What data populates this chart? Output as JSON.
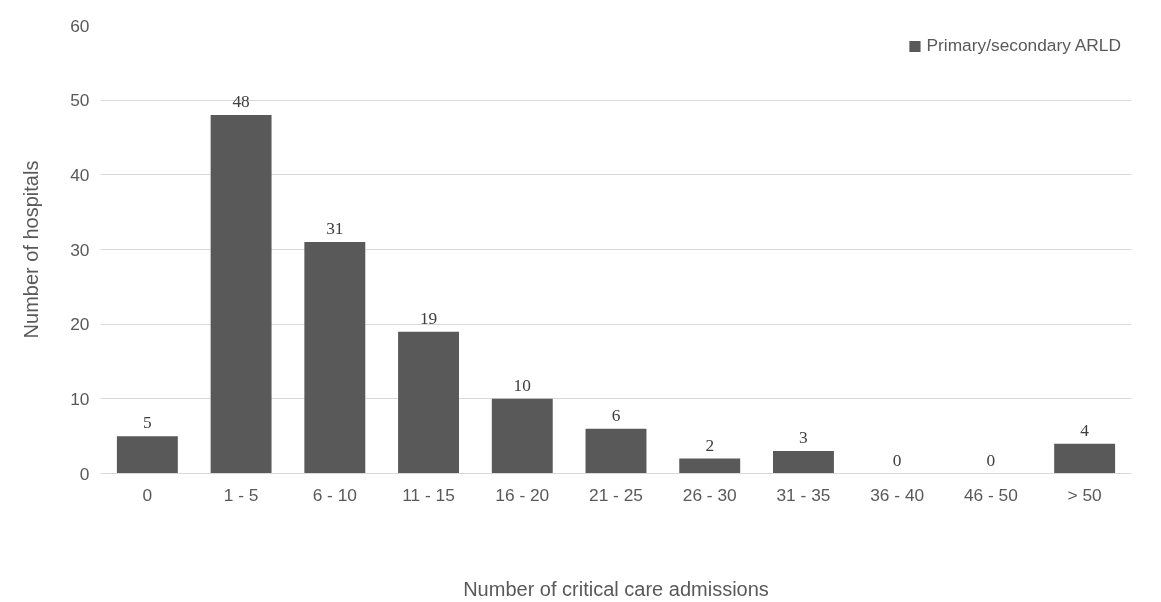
{
  "chart_data": {
    "type": "bar",
    "xlabel": "Number of critical care admissions",
    "ylabel": "Number of hospitals",
    "categories": [
      "0",
      "1 - 5",
      "6 - 10",
      "11 - 15",
      "16 - 20",
      "21 - 25",
      "26 - 30",
      "31 - 35",
      "36 - 40",
      "46 - 50",
      "> 50"
    ],
    "series": [
      {
        "name": "Primary/secondary ARLD",
        "color": "#595959",
        "values": [
          5,
          48,
          31,
          19,
          10,
          6,
          2,
          3,
          0,
          0,
          4
        ]
      }
    ],
    "ylim": [
      0,
      60
    ],
    "yticks": [
      0,
      10,
      20,
      30,
      40,
      50,
      60
    ],
    "grid": "y",
    "legend": "top right",
    "data_labels": true
  }
}
